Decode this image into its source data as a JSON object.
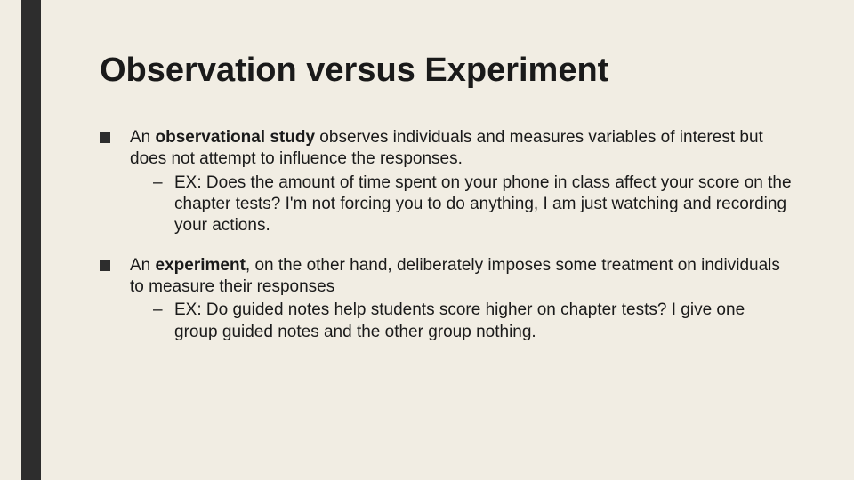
{
  "slide": {
    "background_color": "#f1ede3",
    "accent_bar_color": "#2d2d2d",
    "title": "Observation versus Experiment",
    "title_fontsize": 38,
    "body_fontsize": 19,
    "text_color": "#1a1a1a",
    "bullets": [
      {
        "prefix": "An ",
        "bold": "observational study",
        "rest": " observes individuals and measures variables of interest but does not attempt to influence the responses.",
        "sub": "EX: Does the amount of time spent on your phone in class affect your score on the chapter tests? I'm not forcing you to do anything, I am just watching and recording your actions."
      },
      {
        "prefix": "An ",
        "bold": "experiment",
        "rest": ", on the other hand, deliberately imposes some treatment on individuals to measure their responses",
        "sub": "EX: Do guided notes help students score higher on chapter tests? I give one group guided notes and the other group nothing."
      }
    ]
  }
}
